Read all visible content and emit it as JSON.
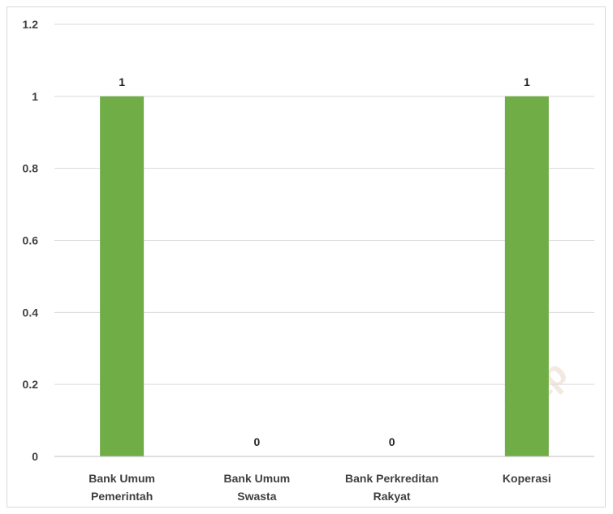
{
  "chart_data": {
    "type": "bar",
    "categories": [
      [
        "Bank Umum",
        "Pemerintah"
      ],
      [
        "Bank Umum",
        "Swasta"
      ],
      [
        "Bank Perkreditan",
        "Rakyat"
      ],
      [
        "Koperasi"
      ]
    ],
    "values": [
      1,
      0,
      0,
      1
    ],
    "data_labels": [
      "1",
      "0",
      "0",
      "1"
    ],
    "y_ticks": [
      "0",
      "0.2",
      "0.4",
      "0.6",
      "0.8",
      "1",
      "1.2"
    ],
    "ylim": [
      0,
      1.2
    ],
    "grid": true,
    "legend": "none",
    "bar_color": "#70ad47",
    "grid_color": "#d9d9d9",
    "axis_color": "#bfbfbf"
  },
  "watermark": "http"
}
